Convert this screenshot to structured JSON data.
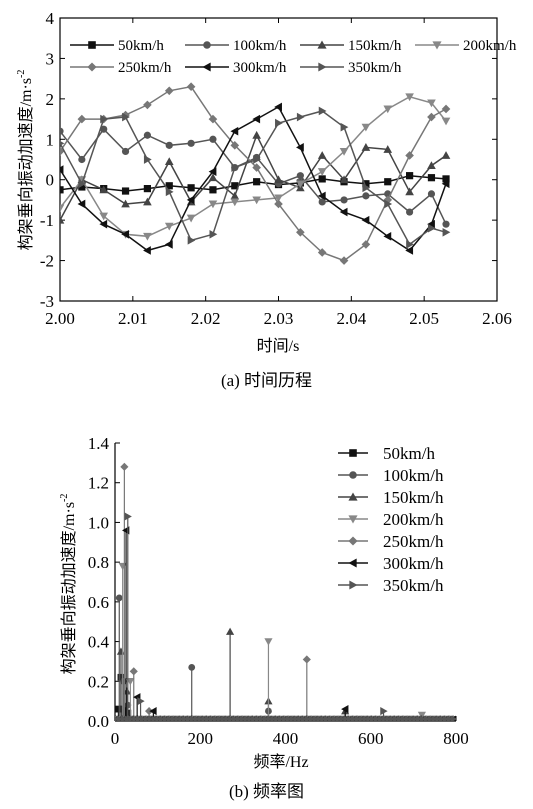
{
  "chart_data": [
    {
      "type": "line",
      "xlabel": "时间/s",
      "ylabel": "构架垂向振动加速度/m·s",
      "ylabel_sup": "-2",
      "caption": "(a) 时间历程",
      "xlim": [
        2.0,
        2.06
      ],
      "ylim": [
        -3,
        4
      ],
      "xticks": [
        "2.00",
        "2.01",
        "2.02",
        "2.03",
        "2.04",
        "2.05",
        "2.06"
      ],
      "yticks": [
        "-3",
        "-2",
        "-1",
        "0",
        "1",
        "2",
        "3",
        "4"
      ],
      "x": [
        2.0,
        2.003,
        2.006,
        2.009,
        2.012,
        2.015,
        2.018,
        2.021,
        2.024,
        2.027,
        2.03,
        2.033,
        2.036,
        2.039,
        2.042,
        2.045,
        2.048,
        2.051,
        2.053
      ],
      "legend_position": "top",
      "series": [
        {
          "name": "50km/h",
          "marker": "square",
          "color": "#111111",
          "values": [
            -0.25,
            -0.18,
            -0.22,
            -0.28,
            -0.22,
            -0.15,
            -0.2,
            -0.25,
            -0.15,
            -0.05,
            -0.12,
            -0.08,
            0.02,
            -0.05,
            -0.1,
            -0.05,
            0.1,
            0.05,
            0.02
          ]
        },
        {
          "name": "100km/h",
          "marker": "circle",
          "color": "#555555",
          "values": [
            1.2,
            0.5,
            1.25,
            0.7,
            1.1,
            0.85,
            0.9,
            1.0,
            0.3,
            0.55,
            -0.1,
            0.1,
            -0.55,
            -0.5,
            -0.4,
            -0.35,
            -0.8,
            -0.35,
            -1.1
          ]
        },
        {
          "name": "150km/h",
          "marker": "triangle-up",
          "color": "#444444",
          "values": [
            -1.0,
            0.0,
            -0.25,
            -0.6,
            -0.55,
            0.45,
            -0.55,
            0.05,
            -0.4,
            1.1,
            0.0,
            -0.2,
            0.6,
            0.0,
            0.8,
            0.75,
            -0.3,
            0.35,
            0.6
          ]
        },
        {
          "name": "200km/h",
          "marker": "triangle-down",
          "color": "#888888",
          "values": [
            -0.7,
            0.0,
            -0.9,
            -1.35,
            -1.4,
            -1.15,
            -0.95,
            -0.6,
            -0.55,
            -0.5,
            -0.45,
            -0.1,
            0.2,
            0.7,
            1.3,
            1.75,
            2.05,
            1.9,
            1.45
          ]
        },
        {
          "name": "250km/h",
          "marker": "diamond",
          "color": "#777777",
          "values": [
            0.7,
            1.5,
            1.5,
            1.6,
            1.85,
            2.2,
            2.3,
            1.5,
            0.85,
            0.3,
            -0.6,
            -1.3,
            -1.8,
            -2.0,
            -1.6,
            -0.5,
            0.6,
            1.55,
            1.75
          ]
        },
        {
          "name": "300km/h",
          "marker": "triangle-left",
          "color": "#111111",
          "values": [
            0.25,
            -0.6,
            -1.1,
            -1.35,
            -1.75,
            -1.6,
            -0.5,
            0.2,
            1.2,
            1.5,
            1.8,
            0.8,
            -0.4,
            -0.8,
            -1.0,
            -1.4,
            -1.75,
            -1.1,
            -0.1
          ]
        },
        {
          "name": "350km/h",
          "marker": "triangle-right",
          "color": "#555555",
          "values": [
            0.9,
            -0.1,
            1.5,
            1.55,
            0.5,
            -0.3,
            -1.5,
            -1.35,
            0.3,
            0.5,
            1.4,
            1.55,
            1.7,
            1.3,
            -0.2,
            -0.6,
            -1.6,
            -1.2,
            -1.3
          ]
        }
      ]
    },
    {
      "type": "line",
      "xlabel": "频率/Hz",
      "ylabel": "构架垂向振动加速度/m·s",
      "ylabel_sup": "-2",
      "caption": "(b) 频率图",
      "xlim": [
        0,
        800
      ],
      "ylim": [
        0,
        1.4
      ],
      "xticks": [
        "0",
        "200",
        "400",
        "600",
        "800"
      ],
      "yticks": [
        "0.0",
        "0.2",
        "0.4",
        "0.6",
        "0.8",
        "1.0",
        "1.2",
        "1.4"
      ],
      "legend_position": "top-right",
      "series": [
        {
          "name": "50km/h",
          "marker": "square",
          "color": "#111111",
          "peaks": [
            [
              8,
              0.06
            ],
            [
              14,
              0.22
            ],
            [
              17,
              0.06
            ],
            [
              30,
              0.04
            ]
          ]
        },
        {
          "name": "100km/h",
          "marker": "circle",
          "color": "#555555",
          "peaks": [
            [
              10,
              0.62
            ],
            [
              20,
              0.2
            ],
            [
              30,
              0.08
            ],
            [
              180,
              0.27
            ],
            [
              360,
              0.05
            ]
          ]
        },
        {
          "name": "150km/h",
          "marker": "triangle-up",
          "color": "#444444",
          "peaks": [
            [
              14,
              0.35
            ],
            [
              28,
              0.15
            ],
            [
              270,
              0.45
            ],
            [
              360,
              0.1
            ],
            [
              540,
              0.05
            ]
          ]
        },
        {
          "name": "200km/h",
          "marker": "triangle-down",
          "color": "#888888",
          "peaks": [
            [
              18,
              0.78
            ],
            [
              36,
              0.2
            ],
            [
              360,
              0.4
            ],
            [
              720,
              0.03
            ]
          ]
        },
        {
          "name": "250km/h",
          "marker": "diamond",
          "color": "#777777",
          "peaks": [
            [
              22,
              1.28
            ],
            [
              44,
              0.25
            ],
            [
              80,
              0.05
            ],
            [
              450,
              0.31
            ]
          ]
        },
        {
          "name": "300km/h",
          "marker": "triangle-left",
          "color": "#111111",
          "peaks": [
            [
              26,
              0.96
            ],
            [
              52,
              0.12
            ],
            [
              90,
              0.05
            ],
            [
              540,
              0.06
            ]
          ]
        },
        {
          "name": "350km/h",
          "marker": "triangle-right",
          "color": "#555555",
          "peaks": [
            [
              30,
              1.03
            ],
            [
              60,
              0.1
            ],
            [
              630,
              0.05
            ]
          ]
        }
      ]
    }
  ]
}
